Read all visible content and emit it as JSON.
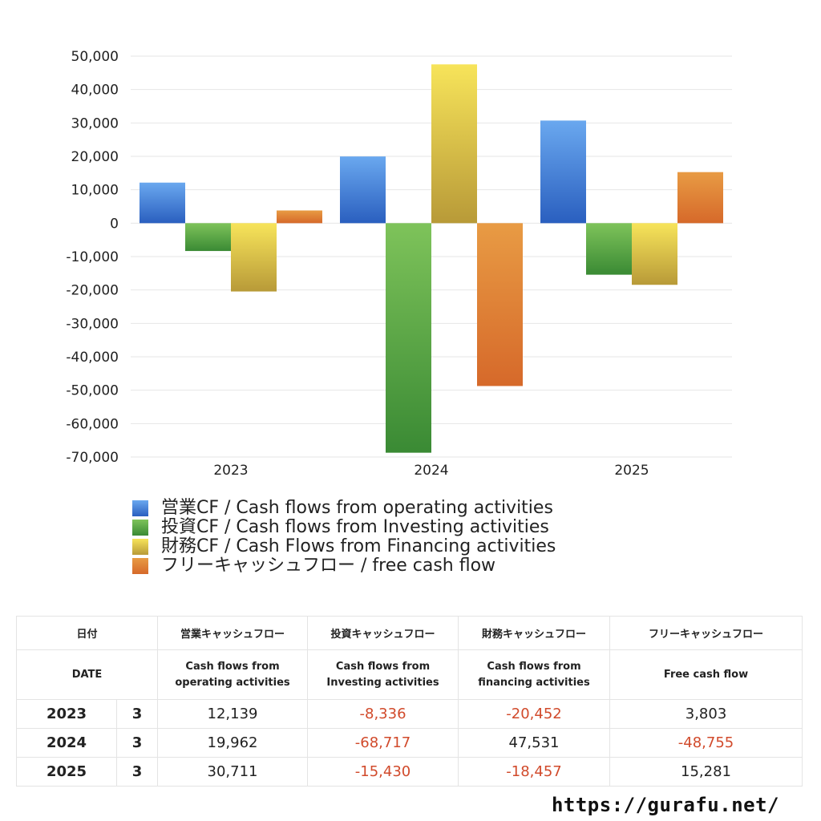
{
  "chart_data": {
    "type": "bar",
    "categories": [
      "2023",
      "2024",
      "2025"
    ],
    "ylim": [
      -70000,
      50000
    ],
    "yticks": [
      50000,
      40000,
      30000,
      20000,
      10000,
      0,
      -10000,
      -20000,
      -30000,
      -40000,
      -50000,
      -60000,
      -70000
    ],
    "ytick_labels": [
      "50,000",
      "40,000",
      "30,000",
      "20,000",
      "10,000",
      "0",
      "-10,000",
      "-20,000",
      "-30,000",
      "-40,000",
      "-50,000",
      "-60,000",
      "-70,000"
    ],
    "grid": true,
    "legend_position": "bottom",
    "series": [
      {
        "name": "営業CF / Cash flows from operating activities",
        "values": [
          12139,
          19962,
          30711
        ],
        "color_top": "#6aa8ef",
        "color_bottom": "#2a5fbf"
      },
      {
        "name": "投資CF / Cash flows from Investing activities",
        "values": [
          -8336,
          -68717,
          -15430
        ],
        "color_top": "#7ec35a",
        "color_bottom": "#3a8a34"
      },
      {
        "name": "財務CF / Cash Flows from Financing activities",
        "values": [
          -20452,
          47531,
          -18457
        ],
        "color_top": "#f7e45a",
        "color_bottom": "#b89a38"
      },
      {
        "name": "フリーキャッシュフロー / free cash flow",
        "values": [
          3803,
          -48755,
          15281
        ],
        "color_top": "#e89b44",
        "color_bottom": "#d6692a"
      }
    ]
  },
  "table": {
    "header_jp": {
      "date": "日付",
      "operating": "営業キャッシュフロー",
      "investing": "投資キャッシュフロー",
      "financing": "財務キャッシュフロー",
      "free": "フリーキャッシュフロー"
    },
    "header_en": {
      "date": "DATE",
      "operating": "Cash flows from\noperating activities",
      "investing": "Cash flows from\nInvesting activities",
      "financing": "Cash flows from\nfinancing activities",
      "free": "Free cash flow"
    },
    "rows": [
      {
        "year": "2023",
        "month": "3",
        "operating": "12,139",
        "investing": "-8,336",
        "financing": "-20,452",
        "free": "3,803"
      },
      {
        "year": "2024",
        "month": "3",
        "operating": "19,962",
        "investing": "-68,717",
        "financing": "47,531",
        "free": "-48,755"
      },
      {
        "year": "2025",
        "month": "3",
        "operating": "30,711",
        "investing": "-15,430",
        "financing": "-18,457",
        "free": "15,281"
      }
    ]
  },
  "footer": {
    "url": "https://gurafu.net/"
  }
}
